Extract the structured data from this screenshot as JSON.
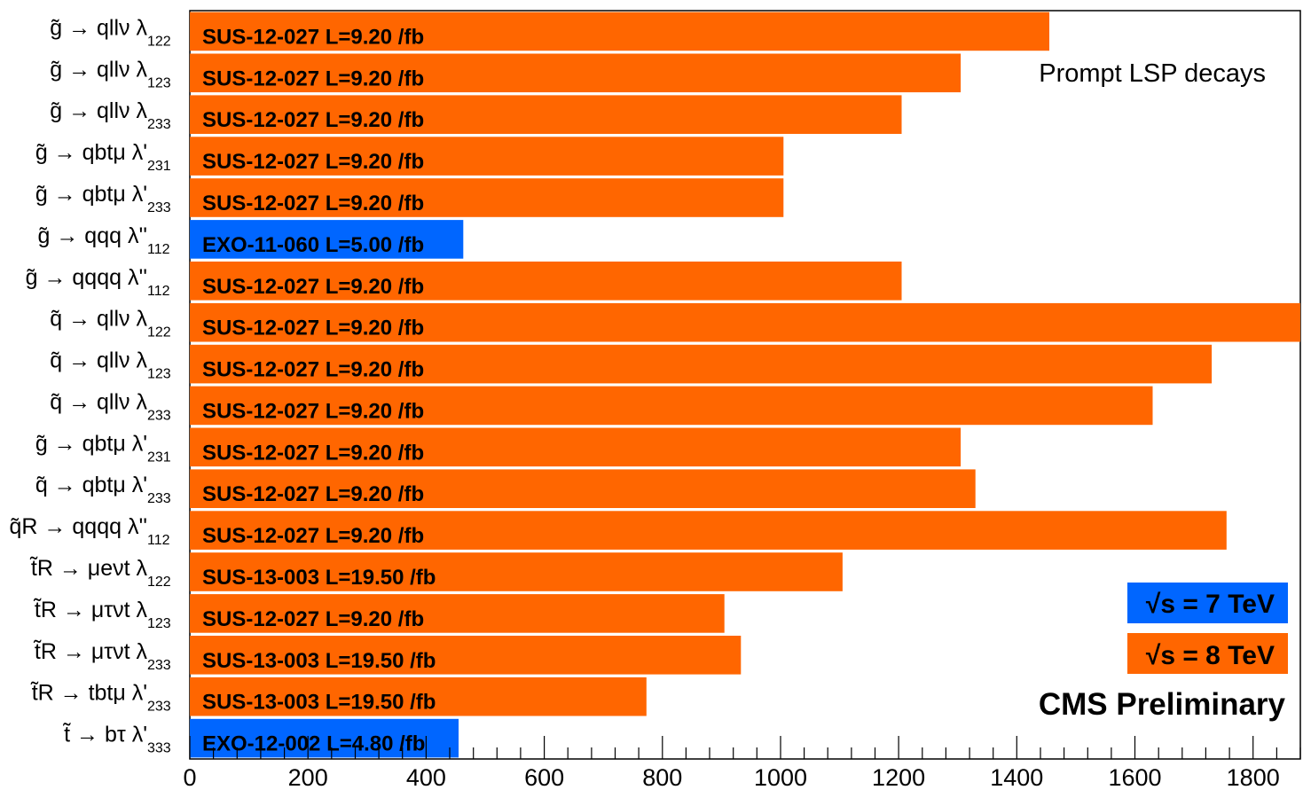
{
  "chart_data": {
    "type": "bar",
    "orientation": "horizontal",
    "title": "",
    "xlabel": "",
    "ylabel": "",
    "xlim": [
      0,
      1880
    ],
    "x_ticks": [
      0,
      200,
      400,
      600,
      800,
      1000,
      1200,
      1400,
      1600,
      1800
    ],
    "x_tick_labels": [
      "0",
      "200",
      "400",
      "600",
      "800",
      "1000",
      "1200",
      "1400",
      "1600",
      "1800"
    ],
    "annotation": "Prompt LSP decays",
    "branding": "CMS Preliminary",
    "legend": [
      {
        "name": "√s = 7 TeV",
        "prefix": "√",
        "text": "s = 7 TeV",
        "color": "#0066ff"
      },
      {
        "name": "√s = 8 TeV",
        "prefix": "√",
        "text": "s = 8 TeV",
        "color": "#ff6600"
      }
    ],
    "colors": {
      "7TeV": "#0066ff",
      "8TeV": "#ff6600"
    },
    "categories": [
      {
        "main": "g̃ → qllν λ",
        "sub": "122",
        "label": "SUS-12-027 L=9.20 /fb",
        "value": 1455,
        "energy": "8TeV"
      },
      {
        "main": "g̃ → qllν λ",
        "sub": "123",
        "label": "SUS-12-027 L=9.20 /fb",
        "value": 1305,
        "energy": "8TeV"
      },
      {
        "main": "g̃ → qllν λ",
        "sub": "233",
        "label": "SUS-12-027 L=9.20 /fb",
        "value": 1205,
        "energy": "8TeV"
      },
      {
        "main": "g̃ → qbtμ λ'",
        "sub": "231",
        "label": "SUS-12-027 L=9.20 /fb",
        "value": 1005,
        "energy": "8TeV"
      },
      {
        "main": "g̃ → qbtμ λ'",
        "sub": "233",
        "label": "SUS-12-027 L=9.20 /fb",
        "value": 1005,
        "energy": "8TeV"
      },
      {
        "main": "g̃ → qqq λ''",
        "sub": "112",
        "label": "EXO-11-060 L=5.00 /fb",
        "value": 463,
        "energy": "7TeV"
      },
      {
        "main": "g̃ → qqqq λ''",
        "sub": "112",
        "label": "SUS-12-027 L=9.20 /fb",
        "value": 1205,
        "energy": "8TeV"
      },
      {
        "main": "q̃ → qllν λ",
        "sub": "122",
        "label": "SUS-12-027 L=9.20 /fb",
        "value": 1880,
        "energy": "8TeV"
      },
      {
        "main": "q̃ → qllν λ",
        "sub": "123",
        "label": "SUS-12-027 L=9.20 /fb",
        "value": 1730,
        "energy": "8TeV"
      },
      {
        "main": "q̃ → qllν λ",
        "sub": "233",
        "label": "SUS-12-027 L=9.20 /fb",
        "value": 1630,
        "energy": "8TeV"
      },
      {
        "main": "g̃ → qbtμ λ'",
        "sub": "231",
        "label": "SUS-12-027 L=9.20 /fb",
        "value": 1305,
        "energy": "8TeV"
      },
      {
        "main": "q̃ → qbtμ λ'",
        "sub": "233",
        "label": "SUS-12-027 L=9.20 /fb",
        "value": 1330,
        "energy": "8TeV"
      },
      {
        "main": "q̃R → qqqq λ''",
        "sub": "112",
        "label": "SUS-12-027 L=9.20 /fb",
        "value": 1755,
        "energy": "8TeV"
      },
      {
        "main": "t̃R → μeνt λ",
        "sub": "122",
        "label": "SUS-13-003 L=19.50 /fb",
        "value": 1105,
        "energy": "8TeV"
      },
      {
        "main": "t̃R → μτνt λ",
        "sub": "123",
        "label": "SUS-12-027 L=9.20 /fb",
        "value": 905,
        "energy": "8TeV"
      },
      {
        "main": "t̃R → μτνt λ",
        "sub": "233",
        "label": "SUS-13-003 L=19.50 /fb",
        "value": 933,
        "energy": "8TeV"
      },
      {
        "main": "t̃R → tbtμ λ'",
        "sub": "233",
        "label": "SUS-13-003 L=19.50 /fb",
        "value": 773,
        "energy": "8TeV"
      },
      {
        "main": "t̃ → bτ λ'",
        "sub": "333",
        "label": "EXO-12-002 L=4.80 /fb",
        "value": 455,
        "energy": "7TeV"
      }
    ]
  }
}
